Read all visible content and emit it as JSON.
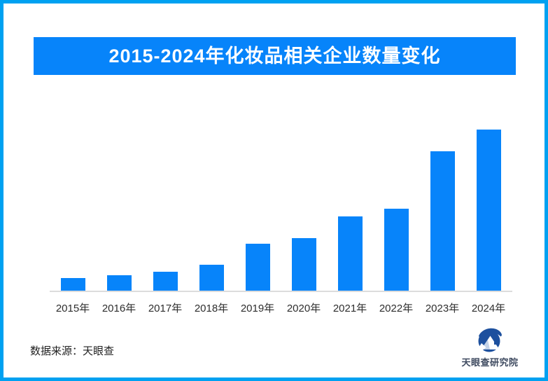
{
  "frame": {
    "border_color": "#00a1f1"
  },
  "title_banner": {
    "bg_color": "#0784fa",
    "text_color": "#ffffff"
  },
  "chart_data": {
    "type": "bar",
    "title": "2015-2024年化妆品相关企业数量变化",
    "categories": [
      "2015年",
      "2016年",
      "2017年",
      "2018年",
      "2019年",
      "2020年",
      "2021年",
      "2022年",
      "2023年",
      "2024年"
    ],
    "values": [
      7.8,
      9.6,
      11.7,
      16.1,
      29.3,
      32.6,
      46.3,
      50.7,
      86.5,
      100
    ],
    "value_note": "No y-axis or data labels shown; values are relative bar heights as percent of the tallest (2024) bar",
    "xlabel": "",
    "ylabel": "",
    "bar_color": "#0784fa",
    "axis_line_color": "#dcdcdc",
    "grid": false,
    "legend": false
  },
  "footer": {
    "source_text": "数据来源：天眼查",
    "logo_text": "天眼查研究院"
  }
}
